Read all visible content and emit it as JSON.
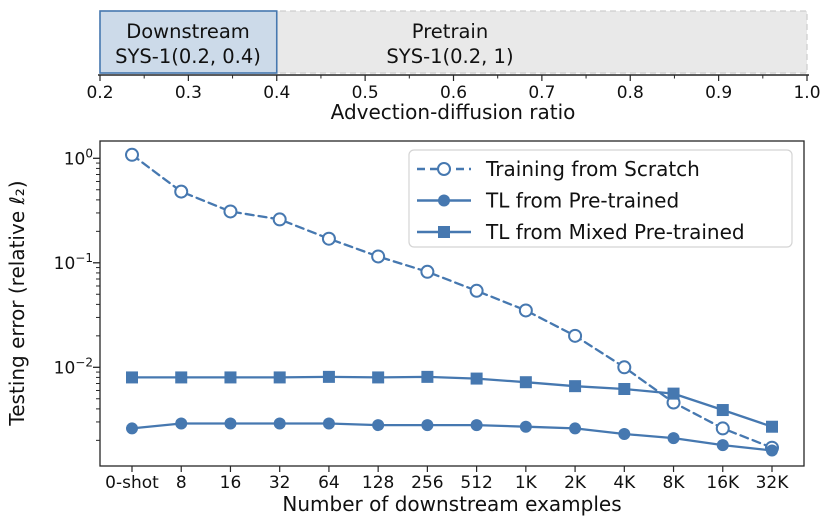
{
  "colors": {
    "accent_blue": "#4678b0",
    "blue_text": "#3d78b4",
    "downstream_fill": "#ccdae9",
    "pretrain_fill": "#e9e9e9",
    "pretrain_border": "#cfcfcf",
    "gray_text": "#8d8d8d",
    "axis_color": "#262626",
    "legend_border": "#d4d4d4"
  },
  "top_panel": {
    "axis_label": "Advection-diffusion ratio",
    "xlim": [
      0.2,
      1.0
    ],
    "ticks": [
      "0.2",
      "0.3",
      "0.4",
      "0.5",
      "0.6",
      "0.7",
      "0.8",
      "0.9",
      "1.0"
    ],
    "tick_values": [
      0.2,
      0.3,
      0.4,
      0.5,
      0.6,
      0.7,
      0.8,
      0.9,
      1.0
    ],
    "minor_tick_values": [
      0.25,
      0.35,
      0.45,
      0.55,
      0.65,
      0.75,
      0.85,
      0.95
    ],
    "regions": [
      {
        "name": "pretrain",
        "label_line1": "Pretrain",
        "label_line2": "SYS-1(0.2, 1)",
        "range": [
          0.2,
          1.0
        ],
        "border_style": "dashed"
      },
      {
        "name": "downstream",
        "label_line1": "Downstream",
        "label_line2": "SYS-1(0.2, 0.4)",
        "range": [
          0.2,
          0.4
        ],
        "border_style": "solid"
      }
    ]
  },
  "chart_data": {
    "type": "line",
    "title": "",
    "xlabel": "Number of downstream examples",
    "ylabel": "Testing error (relative ℓ₂)",
    "yscale": "log",
    "ylim": [
      0.0012,
      1.45
    ],
    "grid": false,
    "legend_position": "upper right",
    "categories": [
      "0-shot",
      "8",
      "16",
      "32",
      "64",
      "128",
      "256",
      "512",
      "1K",
      "2K",
      "4K",
      "8K",
      "16K",
      "32K"
    ],
    "ytick_values": [
      1,
      0.1,
      0.01
    ],
    "ytick_exponents": [
      0,
      -1,
      -2
    ],
    "series": [
      {
        "name": "Training from Scratch",
        "line": "dashed",
        "marker": "open-circle",
        "values": [
          1.08,
          0.48,
          0.31,
          0.26,
          0.17,
          0.115,
          0.082,
          0.054,
          0.035,
          0.02,
          0.01,
          0.0046,
          0.0026,
          0.0017
        ]
      },
      {
        "name": "TL from Pre-trained",
        "line": "solid",
        "marker": "circle",
        "values": [
          0.0026,
          0.0029,
          0.0029,
          0.0029,
          0.0029,
          0.0028,
          0.0028,
          0.0028,
          0.0027,
          0.0026,
          0.0023,
          0.0021,
          0.0018,
          0.0016
        ]
      },
      {
        "name": "TL from Mixed Pre-trained",
        "line": "solid",
        "marker": "square",
        "values": [
          0.008,
          0.008,
          0.008,
          0.008,
          0.0081,
          0.008,
          0.0081,
          0.0078,
          0.0072,
          0.0066,
          0.0062,
          0.0056,
          0.0039,
          0.0027
        ]
      }
    ]
  }
}
